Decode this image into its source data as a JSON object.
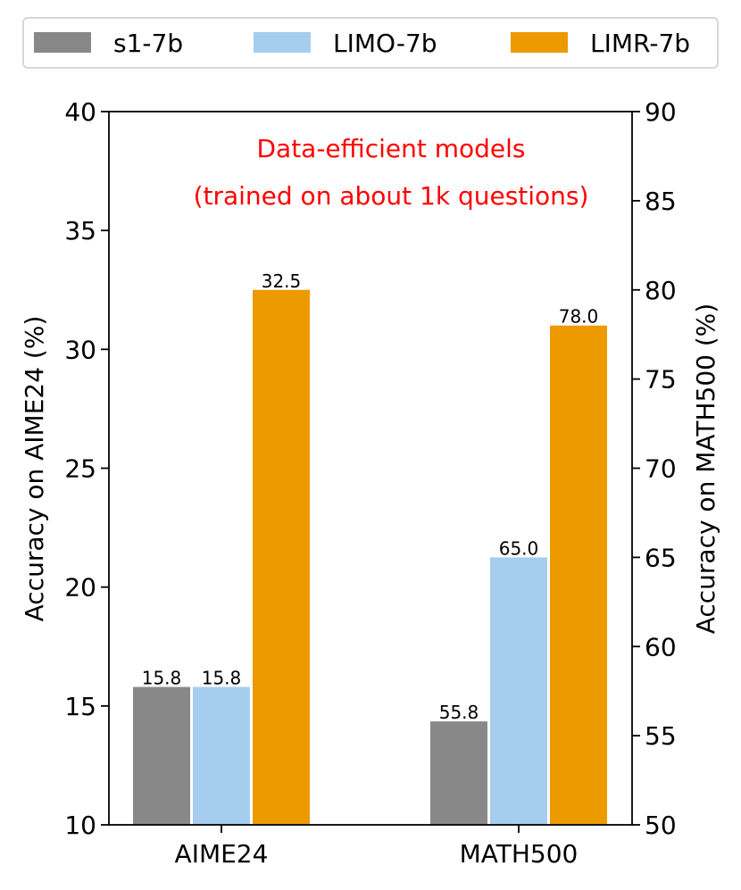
{
  "chart_data": {
    "type": "bar",
    "categories": [
      "AIME24",
      "MATH500"
    ],
    "series": [
      {
        "name": "s1-7b",
        "values": [
          15.8,
          55.8
        ],
        "color": "#888888"
      },
      {
        "name": "LIMO-7b",
        "values": [
          15.8,
          65.0
        ],
        "color": "#a6cdee"
      },
      {
        "name": "LIMR-7b",
        "values": [
          32.5,
          78.0
        ],
        "color": "#ec9a00"
      }
    ],
    "value_labels": [
      [
        "15.8",
        "15.8",
        "32.5"
      ],
      [
        "55.8",
        "65.0",
        "78.0"
      ]
    ],
    "category_axis": [
      "left",
      "right"
    ],
    "ylabel_left": "Accuracy on AIME24 (%)",
    "ylabel_right": "Accuracy on MATH500 (%)",
    "ylim_left": [
      10,
      40
    ],
    "ylim_right": [
      50,
      90
    ],
    "yticks_left": [
      "10",
      "15",
      "20",
      "25",
      "30",
      "35",
      "40"
    ],
    "yticks_right": [
      "50",
      "55",
      "60",
      "65",
      "70",
      "75",
      "80",
      "85",
      "90"
    ],
    "annotation_lines": [
      "Data-efficient models",
      "(trained on about 1k questions)"
    ],
    "annotation_color": "#ff0000",
    "legend_placement": "top",
    "grid": false
  }
}
